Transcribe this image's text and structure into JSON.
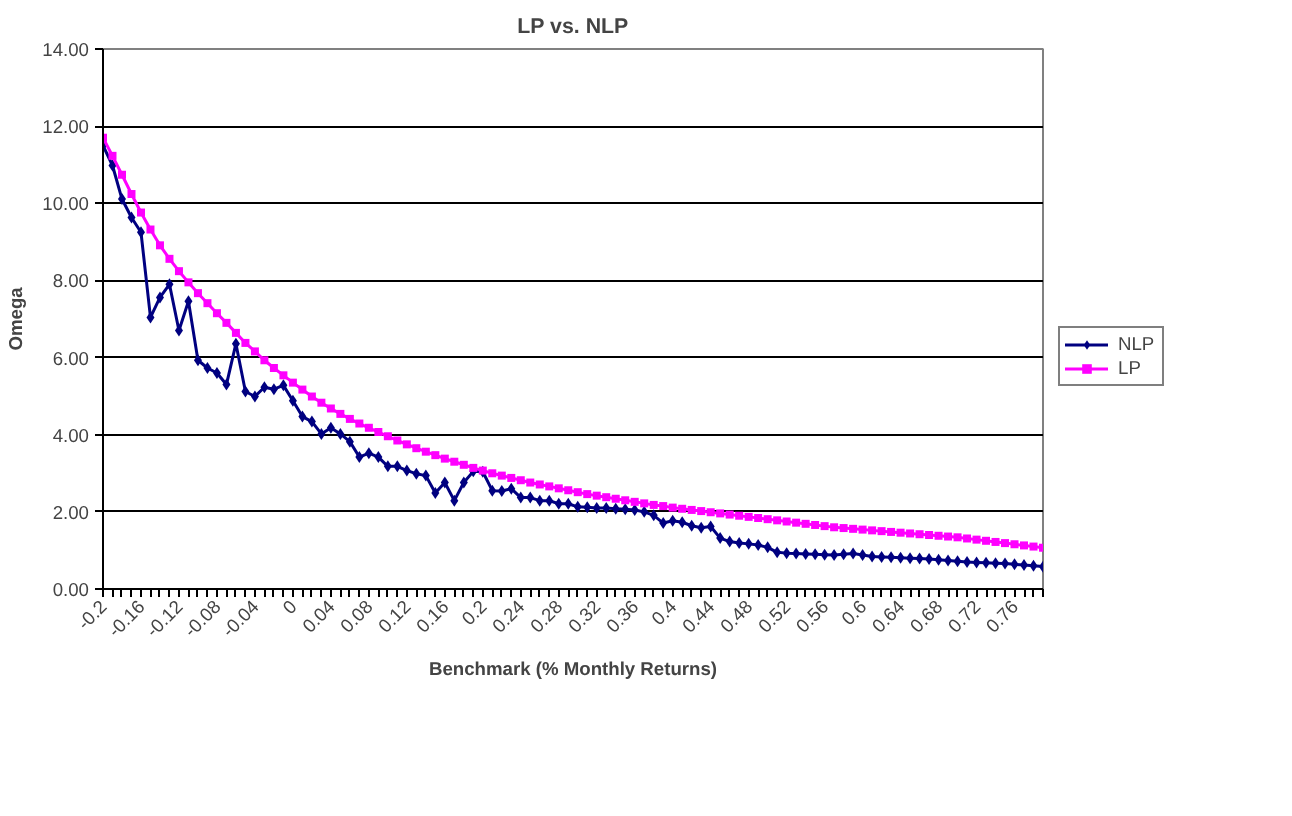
{
  "chart_data": {
    "type": "line",
    "title": "LP vs. NLP",
    "xlabel": "Benchmark (% Monthly Returns)",
    "ylabel": "Omega",
    "categories": [
      "-0.2",
      null,
      null,
      null,
      "-0.16",
      null,
      null,
      null,
      "-0.12",
      null,
      null,
      null,
      "-0.08",
      null,
      null,
      null,
      "-0.04",
      null,
      null,
      null,
      "0",
      null,
      null,
      null,
      "0.04",
      null,
      null,
      null,
      "0.08",
      null,
      null,
      null,
      "0.12",
      null,
      null,
      null,
      "0.16",
      null,
      null,
      null,
      "0.2",
      null,
      null,
      null,
      "0.24",
      null,
      null,
      null,
      "0.28",
      null,
      null,
      null,
      "0.32",
      null,
      null,
      null,
      "0.36",
      null,
      null,
      null,
      "0.4",
      null,
      null,
      null,
      "0.44",
      null,
      null,
      null,
      "0.48",
      null,
      null,
      null,
      "0.52",
      null,
      null,
      null,
      "0.56",
      null,
      null,
      null,
      "0.6",
      null,
      null,
      null,
      "0.64",
      null,
      null,
      null,
      "0.68",
      null,
      null,
      null,
      "0.72",
      null,
      null,
      null,
      "0.76",
      null,
      null,
      null
    ],
    "ylim": [
      0,
      14
    ],
    "yticks": [
      {
        "value": 0,
        "label": "0.00"
      },
      {
        "value": 2,
        "label": "2.00"
      },
      {
        "value": 4,
        "label": "4.00"
      },
      {
        "value": 6,
        "label": "6.00"
      },
      {
        "value": 8,
        "label": "8.00"
      },
      {
        "value": 10,
        "label": "10.00"
      },
      {
        "value": 12,
        "label": "12.00"
      },
      {
        "value": 14,
        "label": "14.00"
      }
    ],
    "grid": "y",
    "legend": "right",
    "series": [
      {
        "name": "NLP",
        "color": "#000080",
        "marker": "diamond",
        "values": [
          11.5,
          10.98,
          10.11,
          9.63,
          9.25,
          7.04,
          7.56,
          7.9,
          6.7,
          7.46,
          5.93,
          5.73,
          5.6,
          5.3,
          6.36,
          5.12,
          4.99,
          5.23,
          5.18,
          5.28,
          4.88,
          4.47,
          4.34,
          4.02,
          4.18,
          4.02,
          3.82,
          3.42,
          3.52,
          3.42,
          3.18,
          3.18,
          3.07,
          2.99,
          2.94,
          2.49,
          2.76,
          2.29,
          2.76,
          3.05,
          3.04,
          2.55,
          2.54,
          2.6,
          2.37,
          2.37,
          2.29,
          2.29,
          2.21,
          2.21,
          2.13,
          2.12,
          2.1,
          2.1,
          2.08,
          2.07,
          2.05,
          2.0,
          1.91,
          1.71,
          1.77,
          1.73,
          1.64,
          1.59,
          1.62,
          1.32,
          1.23,
          1.19,
          1.17,
          1.14,
          1.08,
          0.95,
          0.93,
          0.92,
          0.91,
          0.9,
          0.89,
          0.88,
          0.9,
          0.92,
          0.88,
          0.84,
          0.83,
          0.82,
          0.81,
          0.8,
          0.79,
          0.78,
          0.76,
          0.74,
          0.72,
          0.7,
          0.69,
          0.68,
          0.67,
          0.66,
          0.64,
          0.62,
          0.6,
          0.58
        ]
      },
      {
        "name": "LP",
        "color": "#ff00ff",
        "marker": "square",
        "values": [
          11.7,
          11.23,
          10.74,
          10.24,
          9.76,
          9.32,
          8.91,
          8.56,
          8.24,
          7.95,
          7.67,
          7.41,
          7.15,
          6.9,
          6.64,
          6.38,
          6.16,
          5.93,
          5.73,
          5.54,
          5.35,
          5.17,
          4.99,
          4.83,
          4.68,
          4.54,
          4.41,
          4.29,
          4.18,
          4.07,
          3.96,
          3.85,
          3.75,
          3.65,
          3.56,
          3.47,
          3.38,
          3.3,
          3.22,
          3.14,
          3.07,
          3.0,
          2.94,
          2.88,
          2.82,
          2.76,
          2.71,
          2.66,
          2.61,
          2.56,
          2.51,
          2.46,
          2.42,
          2.38,
          2.34,
          2.3,
          2.26,
          2.22,
          2.18,
          2.15,
          2.11,
          2.08,
          2.05,
          2.02,
          1.99,
          1.96,
          1.93,
          1.9,
          1.87,
          1.84,
          1.81,
          1.78,
          1.75,
          1.72,
          1.69,
          1.66,
          1.63,
          1.6,
          1.58,
          1.56,
          1.54,
          1.52,
          1.5,
          1.48,
          1.46,
          1.44,
          1.42,
          1.4,
          1.38,
          1.36,
          1.34,
          1.31,
          1.28,
          1.25,
          1.22,
          1.19,
          1.16,
          1.13,
          1.1,
          1.07
        ]
      }
    ]
  }
}
